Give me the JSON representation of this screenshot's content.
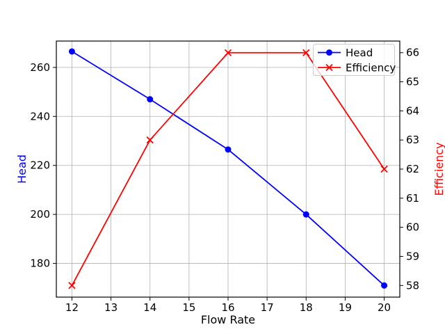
{
  "figure": {
    "background": "#ffffff",
    "axis_color": "#000000",
    "tick_label_color": "#000000"
  },
  "chart_data": {
    "type": "line",
    "x": [
      12,
      14,
      16,
      18,
      20
    ],
    "series": [
      {
        "name": "Head",
        "axis": "left",
        "color": "#0000ff",
        "marker": "circle",
        "values": [
          266.5,
          247,
          226.5,
          200,
          171
        ]
      },
      {
        "name": "Efficiency",
        "axis": "right",
        "color": "#ff0000",
        "marker": "x",
        "values": [
          58,
          63,
          66,
          66,
          62
        ]
      }
    ],
    "title": "",
    "xlabel": "Flow Rate",
    "ylabel_left": "Head",
    "ylabel_right": "Efficiency",
    "x_ticks": [
      12,
      13,
      14,
      15,
      16,
      17,
      18,
      19,
      20
    ],
    "y_ticks_left": [
      180,
      200,
      220,
      240,
      260
    ],
    "y_ticks_right": [
      58,
      59,
      60,
      61,
      62,
      63,
      64,
      65,
      66
    ],
    "xlim": [
      11.6,
      20.4
    ],
    "ylim_left": [
      166.25,
      270.75
    ],
    "ylim_right": [
      57.6,
      66.4
    ],
    "grid": true,
    "grid_color": "#b0b0b0",
    "legend": {
      "position": "upper right",
      "entries": [
        "Head",
        "Efficiency"
      ]
    }
  }
}
